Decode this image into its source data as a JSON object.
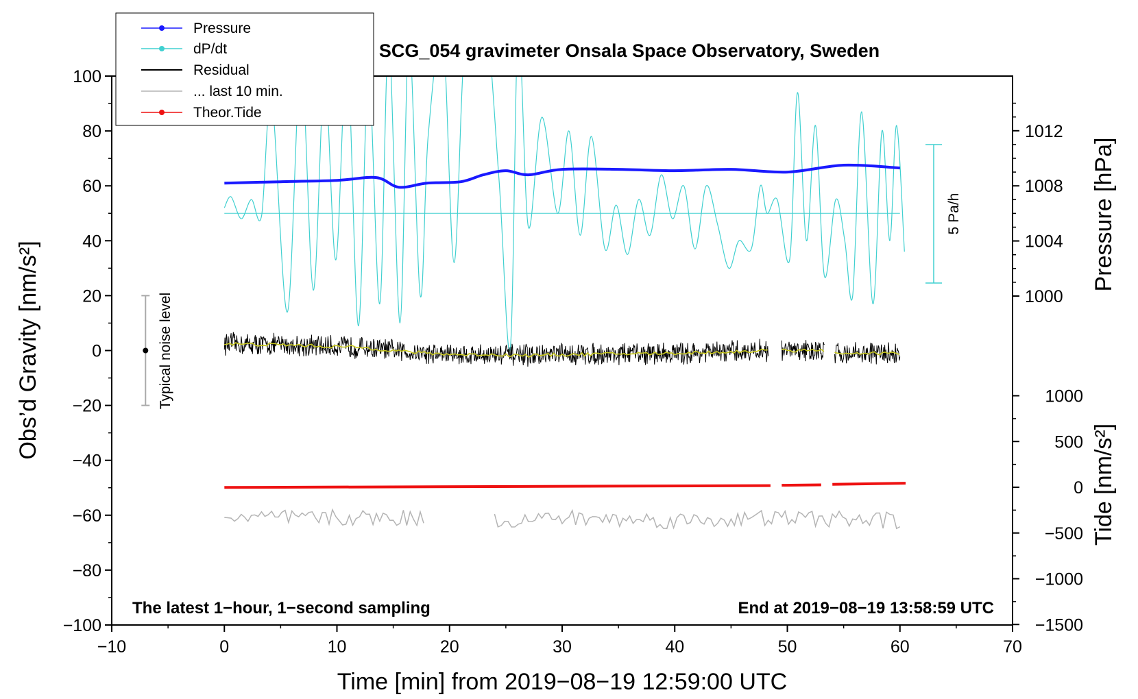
{
  "chart_data": {
    "type": "line",
    "title": "SCG_054 gravimeter Onsala Space Observatory, Sweden",
    "xlabel": "Time [min] from 2019−08−19 12:59:00 UTC",
    "ylabel_left": "Obs’d Gravity [nm/s²]",
    "ylabel_right_pressure": "Pressure [hPa]",
    "ylabel_right_tide": "Tide [nm/s²]",
    "xlim": [
      -10,
      70
    ],
    "ylim_left": [
      -100,
      100
    ],
    "x_ticks": [
      -10,
      0,
      10,
      20,
      30,
      40,
      50,
      60,
      70
    ],
    "x_tick_labels": [
      "−10",
      "0",
      "10",
      "20",
      "30",
      "40",
      "50",
      "60",
      "70"
    ],
    "y_ticks_left": [
      100,
      80,
      60,
      40,
      20,
      0,
      -20,
      -40,
      -60,
      -80,
      -100
    ],
    "y_tick_labels_left": [
      "100",
      "80",
      "60",
      "40",
      "20",
      "0",
      "−20",
      "−40",
      "−60",
      "−80",
      "−100"
    ],
    "pressure_ticks": [
      1000,
      1004,
      1008,
      1012
    ],
    "pressure_tick_labels": [
      "1000",
      "1004",
      "1008",
      "1012"
    ],
    "tide_ticks": [
      1000,
      500,
      0,
      -500,
      -1000,
      -1500
    ],
    "tide_tick_labels": [
      "1000",
      "500",
      "0",
      "−500",
      "−1000",
      "−1500"
    ],
    "legend": [
      {
        "label": "Pressure",
        "color": "#1a1aff",
        "marker": true
      },
      {
        "label": "dP/dt",
        "color": "#40d0d0",
        "marker": true
      },
      {
        "label": "Residual",
        "color": "#000000",
        "marker": false
      },
      {
        "label": "... last 10 min.",
        "color": "#b4b4b4",
        "marker": false
      },
      {
        "label": "Theor.Tide",
        "color": "#ee1111",
        "marker": true
      }
    ],
    "noise_label": "Typical noise level",
    "noise_range": [
      -20,
      20
    ],
    "noise_x": -7,
    "dpdt_scale_label": "5 Pa/h",
    "dpdt_baseline": 50,
    "note_left": "The latest 1−hour, 1−second sampling",
    "note_right": "End at 2019−08−19 13:58:59 UTC",
    "series": [
      {
        "name": "Pressure",
        "unit": "hPa",
        "x": [
          0,
          5,
          10,
          13.5,
          15.5,
          18,
          21,
          23,
          25,
          27,
          30,
          35,
          40,
          45,
          50,
          55,
          60
        ],
        "values": [
          1008.2,
          1008.3,
          1008.4,
          1008.6,
          1007.9,
          1008.2,
          1008.3,
          1008.8,
          1009.1,
          1008.8,
          1009.2,
          1009.2,
          1009.1,
          1009.2,
          1009.0,
          1009.5,
          1009.3
        ]
      },
      {
        "name": "dP/dt",
        "unit": "nm/s² scale",
        "x": [
          0,
          0.6,
          1.5,
          2.4,
          3.3,
          4.2,
          5.6,
          6.8,
          7.9,
          8.9,
          9.9,
          10.9,
          11.9,
          12.8,
          13.8,
          14.6,
          15.6,
          16.4,
          17.4,
          18.1,
          19.4,
          20.4,
          21.4,
          23.1,
          24.4,
          25.4,
          26.1,
          27.0,
          28.2,
          29.6,
          30.6,
          31.6,
          32.6,
          33.8,
          34.8,
          35.8,
          36.8,
          37.8,
          38.8,
          39.8,
          40.8,
          41.8,
          42.8,
          43.8,
          44.8,
          45.7,
          46.8,
          47.6,
          48.2,
          49.1,
          50.2,
          50.9,
          51.7,
          52.5,
          53.3,
          54.3,
          55.1,
          55.8,
          56.6,
          57.6,
          58.4,
          59.1,
          59.7,
          60.4
        ],
        "values": [
          52,
          56,
          48,
          55,
          49,
          92,
          14,
          105,
          22,
          100,
          33,
          108,
          9,
          101,
          17,
          113,
          10,
          114,
          20,
          78,
          115,
          32,
          114,
          125,
          62,
          1,
          118,
          45,
          85,
          50,
          80,
          42,
          78,
          37,
          53,
          35,
          55,
          42,
          64,
          48,
          60,
          37,
          60,
          46,
          30,
          40,
          37,
          60,
          50,
          55,
          33,
          94,
          40,
          82,
          27,
          55,
          40,
          20,
          87,
          17,
          80,
          40,
          82,
          36
        ]
      },
      {
        "name": "Residual",
        "unit": "nm/s²",
        "x": [
          0,
          3,
          6,
          9,
          12,
          15,
          18,
          21,
          24,
          27,
          30,
          35,
          40,
          45,
          48,
          49,
          53,
          54,
          58,
          60
        ],
        "values": [
          2.5,
          2.2,
          2,
          1.5,
          1.2,
          0,
          -1,
          -1.5,
          -1.5,
          -1.8,
          -1.5,
          -1.2,
          -1,
          -0.5,
          0,
          0,
          0,
          -1,
          -1,
          -1
        ]
      },
      {
        "name": "... last 10 min.",
        "unit": "nm/s²",
        "x": [
          0,
          10,
          17.8,
          24,
          30,
          40,
          50,
          60
        ],
        "values": [
          -61,
          -61,
          -61,
          -62,
          -61,
          -62,
          -61,
          -62
        ]
      },
      {
        "name": "Theor.Tide",
        "unit": "nm/s²",
        "x": [
          0,
          10,
          20,
          30,
          40,
          48.5,
          49.5,
          53,
          54,
          60
        ],
        "values": [
          -2,
          0,
          3,
          7,
          13,
          18,
          22,
          26,
          32,
          44
        ]
      }
    ]
  }
}
